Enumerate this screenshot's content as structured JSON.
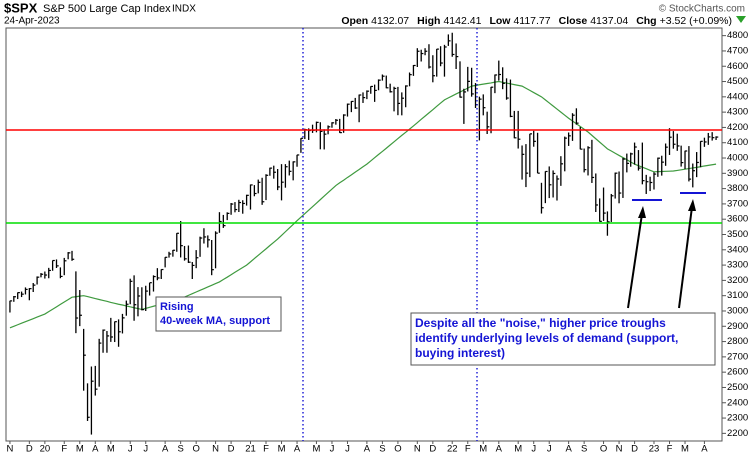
{
  "chart_data": {
    "type": "ohlc",
    "title": "$SPX",
    "subtitle": "S&P 500 Large Cap Index",
    "exchange": "INDX",
    "date": "24-Apr-2023",
    "credit": "© StockCharts.com",
    "quote": [
      {
        "label": "Open",
        "value": 4132.07
      },
      {
        "label": "High",
        "value": 4142.41
      },
      {
        "label": "Low",
        "value": 4117.77
      },
      {
        "label": "Close",
        "value": 4137.04
      },
      {
        "label": "Chg",
        "value": "+3.52 (+0.09%)"
      }
    ],
    "annotations": [
      [
        "Rising",
        "40-week MA, support"
      ],
      [
        "Despite all the \"noise,\" higher price troughs",
        "identify underlying levels of demand (support,",
        "buying interest)"
      ]
    ],
    "categories": [
      "N",
      null,
      null,
      null,
      null,
      "D",
      null,
      null,
      null,
      "20",
      null,
      null,
      null,
      null,
      "F",
      null,
      null,
      null,
      "M",
      null,
      null,
      null,
      "A",
      null,
      null,
      null,
      "M",
      null,
      null,
      null,
      null,
      "J",
      null,
      null,
      null,
      "J",
      null,
      null,
      null,
      null,
      "A",
      null,
      null,
      null,
      "S",
      null,
      null,
      null,
      "O",
      null,
      null,
      null,
      null,
      "N",
      null,
      null,
      null,
      "D",
      null,
      null,
      null,
      null,
      "21",
      null,
      null,
      null,
      "F",
      null,
      null,
      null,
      "M",
      null,
      null,
      null,
      "A",
      null,
      null,
      null,
      null,
      "M",
      null,
      null,
      null,
      "J",
      null,
      null,
      null,
      "J",
      null,
      null,
      null,
      null,
      "A",
      null,
      null,
      null,
      "S",
      null,
      null,
      null,
      "O",
      null,
      null,
      null,
      null,
      "N",
      null,
      null,
      null,
      "D",
      null,
      null,
      null,
      null,
      "22",
      null,
      null,
      null,
      "F",
      null,
      null,
      null,
      "M",
      null,
      null,
      null,
      "A",
      null,
      null,
      null,
      null,
      "M",
      null,
      null,
      null,
      "J",
      null,
      null,
      null,
      "J",
      null,
      null,
      null,
      null,
      "A",
      null,
      null,
      null,
      "S",
      null,
      null,
      null,
      null,
      "O",
      null,
      null,
      null,
      "N",
      null,
      null,
      null,
      "D",
      null,
      null,
      null,
      null,
      "23",
      null,
      null,
      null,
      "F",
      null,
      null,
      null,
      "M",
      null,
      null,
      null,
      null,
      "A",
      null,
      null,
      null
    ],
    "series": [
      {
        "color": "#000000",
        "high": [
          3067,
          3098,
          3121,
          3127,
          3154,
          3150,
          3183,
          3226,
          3248,
          3258,
          3282,
          3330,
          3337,
          3285,
          3347,
          3385,
          3393,
          3259,
          3137,
          2883,
          2527,
          2637,
          2641,
          2818,
          2879,
          2869,
          2955,
          2931,
          2945,
          2981,
          3068,
          3211,
          3233,
          3156,
          3155,
          3165,
          3184,
          3233,
          3280,
          3272,
          3352,
          3387,
          3399,
          3509,
          3588,
          3425,
          3428,
          3320,
          3398,
          3486,
          3541,
          3494,
          3464,
          3521,
          3646,
          3628,
          3645,
          3706,
          3712,
          3727,
          3724,
          3760,
          3827,
          3823,
          3859,
          3871,
          3894,
          3937,
          3950,
          3928,
          3960,
          3960,
          3983,
          3978,
          4021,
          4130,
          4192,
          4194,
          4218,
          4238,
          4234,
          4188,
          4213,
          4234,
          4255,
          4256,
          4286,
          4356,
          4372,
          4393,
          4415,
          4429,
          4442,
          4469,
          4480,
          4514,
          4546,
          4539,
          4486,
          4466,
          4465,
          4429,
          4475,
          4559,
          4608,
          4718,
          4708,
          4718,
          4744,
          4672,
          4713,
          4731,
          4740,
          4808,
          4819,
          4749,
          4632,
          4453,
          4596,
          4590,
          4490,
          4401,
          4416,
          4303,
          4465,
          4546,
          4637,
          4593,
          4521,
          4513,
          4308,
          4308,
          4082,
          4091,
          4158,
          4178,
          4165,
          3838,
          3913,
          3945,
          3919,
          3886,
          4012,
          4140,
          4167,
          4293,
          4325,
          4203,
          4062,
          4077,
          4119,
          3899,
          3736,
          3807,
          3651,
          3765,
          3905,
          3912,
          4001,
          4029,
          4035,
          4101,
          4052,
          4101,
          3890,
          3878,
          3907,
          4003,
          4015,
          4095,
          4195,
          4176,
          4159,
          4081,
          4048,
          4078,
          3964,
          4039,
          4110,
          4133,
          4164,
          4169,
          4142
        ],
        "low": [
          2990,
          3060,
          3078,
          3091,
          3108,
          3070,
          3124,
          3173,
          3220,
          3212,
          3214,
          3263,
          3281,
          3214,
          3234,
          3338,
          3328,
          2855,
          2901,
          2479,
          2281,
          2192,
          2447,
          2505,
          2727,
          2727,
          2798,
          2797,
          2766,
          2853,
          2969,
          3044,
          2936,
          2965,
          3004,
          3000,
          3101,
          3127,
          3201,
          3209,
          3285,
          3349,
          3355,
          3387,
          3350,
          3329,
          3314,
          3209,
          3280,
          3354,
          3441,
          3415,
          3234,
          3279,
          3511,
          3543,
          3594,
          3629,
          3645,
          3647,
          3636,
          3689,
          3663,
          3750,
          3769,
          3694,
          3725,
          3884,
          3865,
          3790,
          3723,
          3806,
          3886,
          3854,
          3943,
          4034,
          4124,
          4118,
          4164,
          4168,
          4057,
          4056,
          4155,
          4198,
          4218,
          4164,
          4165,
          4271,
          4300,
          4321,
          4234,
          4360,
          4385,
          4420,
          4367,
          4443,
          4506,
          4456,
          4428,
          4305,
          4280,
          4279,
          4332,
          4469,
          4537,
          4595,
          4631,
          4672,
          4585,
          4495,
          4532,
          4600,
          4532,
          4733,
          4662,
          4582,
          4395,
          4223,
          4435,
          4401,
          4327,
          4115,
          4279,
          4157,
          4162,
          4424,
          4506,
          4450,
          4381,
          4267,
          4129,
          4062,
          3859,
          3810,
          3875,
          4074,
          3901,
          3637,
          3705,
          3738,
          3742,
          3722,
          3818,
          3913,
          4079,
          4112,
          4218,
          4057,
          3906,
          3886,
          3837,
          3647,
          3584,
          3589,
          3492,
          3582,
          3735,
          3704,
          3739,
          3906,
          3943,
          3957,
          3918,
          3828,
          3765,
          3784,
          3794,
          3877,
          3885,
          3949,
          4020,
          4061,
          4047,
          3944,
          3928,
          3847,
          3808,
          3875,
          3940,
          4073,
          4086,
          4114,
          4118
        ],
        "close": [
          3066,
          3093,
          3120,
          3110,
          3141,
          3146,
          3169,
          3221,
          3240,
          3235,
          3265,
          3330,
          3295,
          3226,
          3328,
          3380,
          3338,
          2954,
          2972,
          2711,
          2305,
          2541,
          2489,
          2790,
          2875,
          2837,
          2830,
          2930,
          2864,
          2955,
          3044,
          3194,
          3041,
          3098,
          3009,
          3130,
          3185,
          3225,
          3216,
          3271,
          3351,
          3373,
          3397,
          3508,
          3427,
          3341,
          3319,
          3298,
          3348,
          3477,
          3484,
          3465,
          3270,
          3509,
          3585,
          3558,
          3638,
          3699,
          3663,
          3709,
          3703,
          3756,
          3824,
          3768,
          3841,
          3714,
          3887,
          3934,
          3907,
          3811,
          3842,
          3943,
          3913,
          3975,
          4020,
          4129,
          4185,
          4180,
          4181,
          4233,
          4174,
          4156,
          4204,
          4230,
          4247,
          4166,
          4281,
          4352,
          4370,
          4327,
          4412,
          4395,
          4437,
          4468,
          4442,
          4509,
          4535,
          4459,
          4433,
          4455,
          4357,
          4391,
          4471,
          4545,
          4605,
          4698,
          4683,
          4698,
          4595,
          4538,
          4712,
          4621,
          4726,
          4766,
          4677,
          4663,
          4398,
          4432,
          4501,
          4419,
          4349,
          4385,
          4329,
          4204,
          4463,
          4543,
          4546,
          4488,
          4392,
          4272,
          4132,
          4123,
          4024,
          3901,
          4158,
          4109,
          3901,
          3675,
          3912,
          3825,
          3899,
          3863,
          3962,
          4130,
          4145,
          4280,
          4228,
          4058,
          3924,
          4067,
          3873,
          3693,
          3586,
          3640,
          3583,
          3753,
          3901,
          3771,
          3993,
          3965,
          4027,
          4072,
          3934,
          3852,
          3845,
          3840,
          3895,
          3999,
          3973,
          4071,
          4136,
          4090,
          4079,
          3970,
          4046,
          3862,
          3917,
          3971,
          4109,
          4105,
          4138,
          4133,
          4137
        ]
      },
      {
        "color": "#3f9a3f",
        "values": [
          2890,
          2900,
          2910,
          2920,
          2930,
          2940,
          2950,
          2960,
          2970,
          2980,
          2996,
          3011,
          3027,
          3043,
          3059,
          3074,
          3090,
          3093,
          3097,
          3100,
          3094,
          3088,
          3081,
          3075,
          3069,
          3063,
          3056,
          3050,
          3044,
          3039,
          3033,
          3027,
          3021,
          3016,
          3010,
          3017,
          3024,
          3031,
          3038,
          3045,
          3052,
          3059,
          3066,
          3073,
          3080,
          3091,
          3102,
          3113,
          3124,
          3135,
          3146,
          3157,
          3168,
          3179,
          3190,
          3206,
          3221,
          3237,
          3253,
          3269,
          3284,
          3300,
          3321,
          3343,
          3364,
          3385,
          3406,
          3428,
          3449,
          3470,
          3494,
          3518,
          3542,
          3566,
          3590,
          3613,
          3636,
          3659,
          3682,
          3705,
          3728,
          3751,
          3774,
          3797,
          3820,
          3838,
          3855,
          3873,
          3890,
          3908,
          3925,
          3943,
          3960,
          3981,
          4002,
          4023,
          4043,
          4064,
          4085,
          4106,
          4127,
          4148,
          4168,
          4189,
          4210,
          4231,
          4253,
          4274,
          4295,
          4316,
          4338,
          4359,
          4380,
          4393,
          4406,
          4419,
          4431,
          4444,
          4457,
          4470,
          4474,
          4479,
          4483,
          4487,
          4491,
          4496,
          4500,
          4495,
          4490,
          4485,
          4480,
          4475,
          4470,
          4456,
          4442,
          4428,
          4414,
          4400,
          4380,
          4360,
          4340,
          4320,
          4300,
          4280,
          4260,
          4242,
          4224,
          4206,
          4188,
          4170,
          4148,
          4126,
          4104,
          4082,
          4060,
          4046,
          4031,
          4017,
          4003,
          3989,
          3974,
          3960,
          3950,
          3940,
          3930,
          3920,
          3910,
          3911,
          3912,
          3913,
          3914,
          3915,
          3919,
          3923,
          3927,
          3931,
          3935,
          3939,
          3943,
          3948,
          3952,
          3956,
          3960
        ]
      }
    ],
    "ylim": [
      2150,
      4850
    ],
    "yticks": [
      2200,
      2300,
      2400,
      2500,
      2600,
      2700,
      2800,
      2900,
      3000,
      3100,
      3200,
      3300,
      3400,
      3500,
      3600,
      3700,
      3800,
      3900,
      4000,
      4100,
      4200,
      4300,
      4400,
      4500,
      4600,
      4700,
      4800
    ],
    "grid": false
  }
}
